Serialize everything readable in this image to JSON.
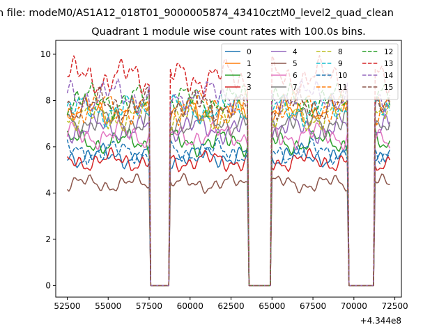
{
  "chart_data": {
    "type": "line",
    "suptitle": "n file: modeM0/AS1A12_018T01_9000005874_43410cztM0_level2_quad_clean",
    "title": "Quadrant 1 module wise count rates with 100.0s bins.",
    "xlabel": "",
    "ylabel": "",
    "x_offset_label": "+4.344e8",
    "xlim": [
      51800,
      72900
    ],
    "ylim": [
      -0.5,
      10.6
    ],
    "xticks": [
      52500,
      55000,
      57500,
      60000,
      62500,
      65000,
      67500,
      70000,
      72500
    ],
    "yticks": [
      0,
      2,
      4,
      6,
      8,
      10
    ],
    "grid": false,
    "legend_position": "top-right",
    "legend_columns": 4,
    "x_start": 52500,
    "x_end": 72250,
    "bin_seconds": 100,
    "gaps": [
      [
        57600,
        58700
      ],
      [
        63600,
        64900
      ],
      [
        69700,
        71200
      ]
    ],
    "series": [
      {
        "name": "0",
        "color": "#1f77b4",
        "dash": "solid",
        "level": 5.6
      },
      {
        "name": "1",
        "color": "#ff7f0e",
        "dash": "solid",
        "level": 7.5
      },
      {
        "name": "2",
        "color": "#2ca02c",
        "dash": "solid",
        "level": 6.2
      },
      {
        "name": "3",
        "color": "#d62728",
        "dash": "solid",
        "level": 5.4
      },
      {
        "name": "4",
        "color": "#9467bd",
        "dash": "solid",
        "level": 6.8
      },
      {
        "name": "5",
        "color": "#8c564b",
        "dash": "solid",
        "level": 4.4
      },
      {
        "name": "6",
        "color": "#e377c2",
        "dash": "solid",
        "level": 6.5
      },
      {
        "name": "7",
        "color": "#7f7f7f",
        "dash": "solid",
        "level": 7.1
      },
      {
        "name": "8",
        "color": "#bcbd22",
        "dash": "dashed",
        "level": 7.3
      },
      {
        "name": "9",
        "color": "#17becf",
        "dash": "dashed",
        "level": 7.6
      },
      {
        "name": "10",
        "color": "#1f77b4",
        "dash": "dashed",
        "level": 5.8
      },
      {
        "name": "11",
        "color": "#ff7f0e",
        "dash": "dashed",
        "level": 7.7
      },
      {
        "name": "12",
        "color": "#2ca02c",
        "dash": "dashed",
        "level": 8.0
      },
      {
        "name": "13",
        "color": "#d62728",
        "dash": "dashed",
        "level": 9.0
      },
      {
        "name": "14",
        "color": "#9467bd",
        "dash": "dashed",
        "level": 8.2
      },
      {
        "name": "15",
        "color": "#8c564b",
        "dash": "dashed",
        "level": 7.8
      }
    ]
  }
}
